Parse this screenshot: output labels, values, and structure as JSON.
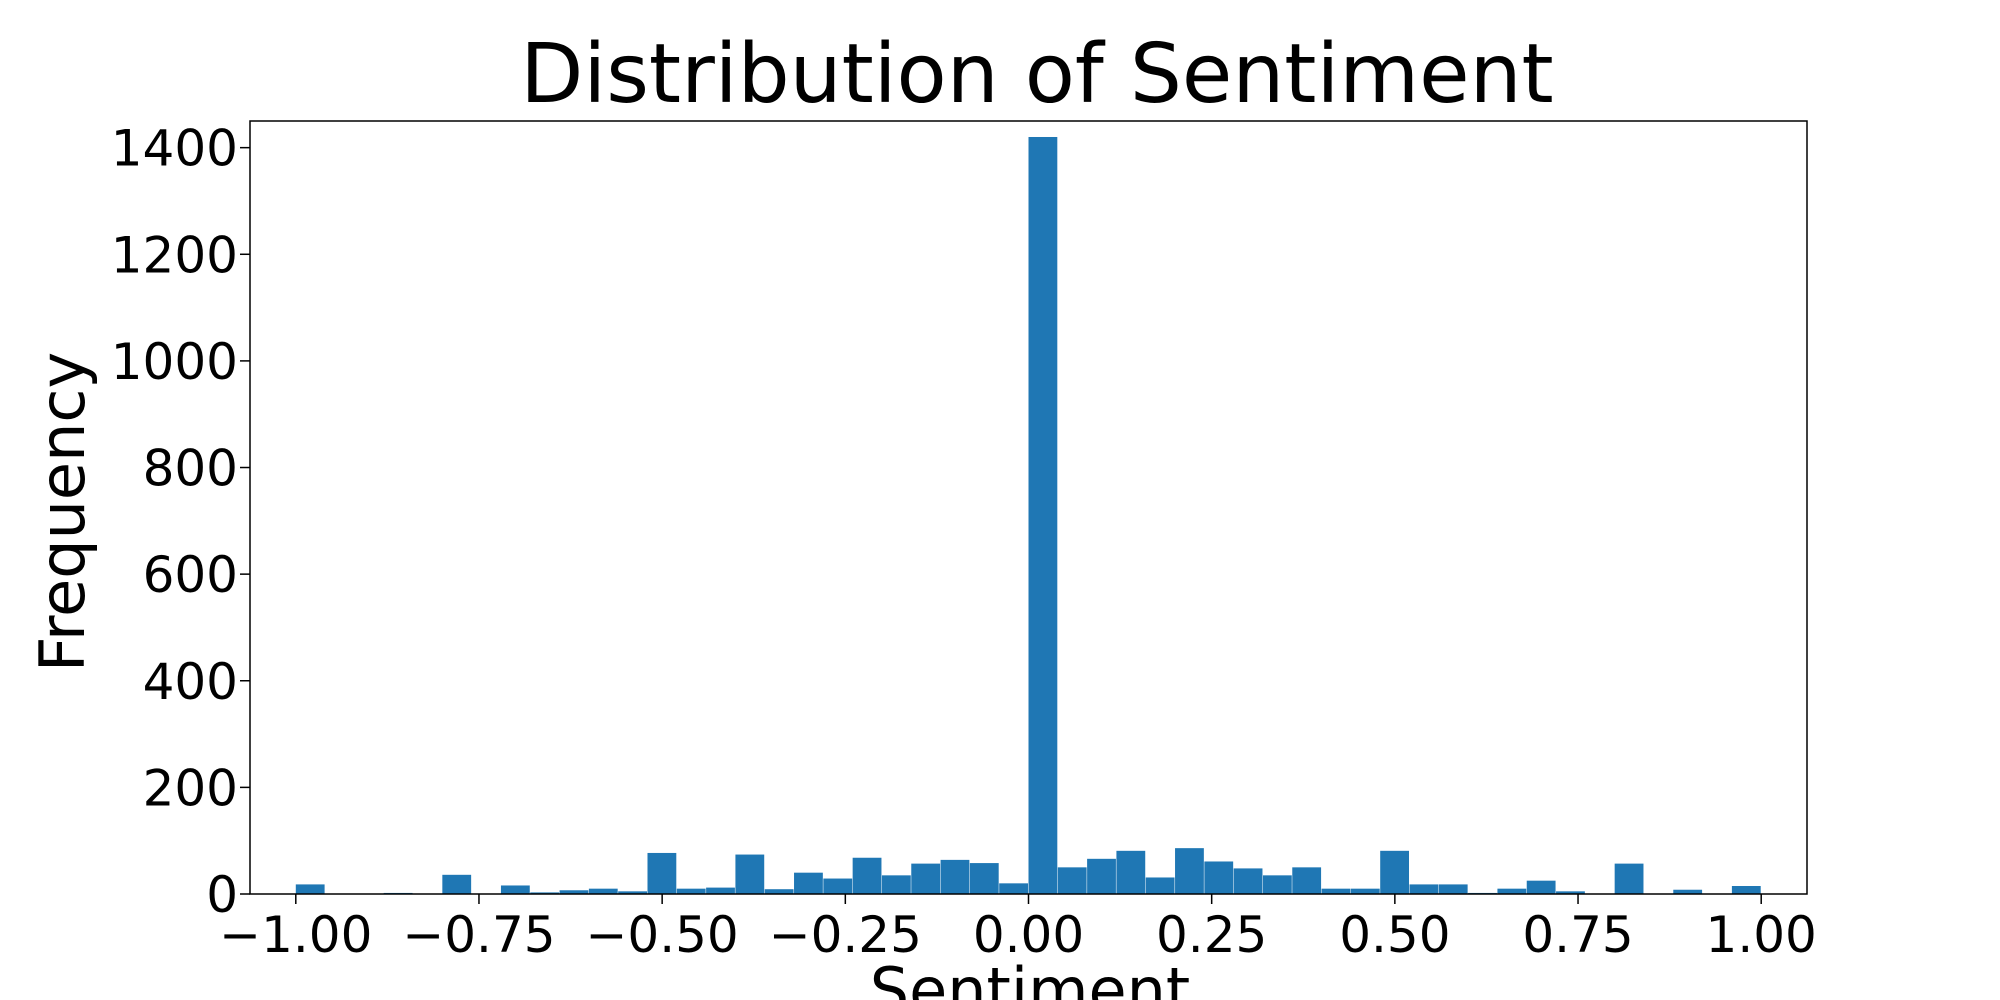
{
  "chart_data": {
    "type": "bar",
    "title": "Distribution of Sentiment",
    "xlabel": "Sentiment",
    "ylabel": "Frequency",
    "xlim": [
      -1.0625,
      1.0625
    ],
    "ylim": [
      0,
      1450
    ],
    "grid": false,
    "bar_color": "#1f77b4",
    "x_ticks": [
      "−1.00",
      "−0.75",
      "−0.50",
      "−0.25",
      "0.00",
      "0.25",
      "0.50",
      "0.75",
      "1.00"
    ],
    "x_tick_values": [
      -1.0,
      -0.75,
      -0.5,
      -0.25,
      0.0,
      0.25,
      0.5,
      0.75,
      1.0
    ],
    "y_ticks": [
      "0",
      "200",
      "400",
      "600",
      "800",
      "1000",
      "1200",
      "1400"
    ],
    "y_tick_values": [
      0,
      200,
      400,
      600,
      800,
      1000,
      1200,
      1400
    ],
    "bin_edges": [
      -1.0,
      -0.96,
      -0.92,
      -0.88,
      -0.84,
      -0.8,
      -0.76,
      -0.72,
      -0.68,
      -0.64,
      -0.6,
      -0.56,
      -0.52,
      -0.48,
      -0.44,
      -0.4,
      -0.36,
      -0.32,
      -0.28,
      -0.24,
      -0.2,
      -0.16,
      -0.12,
      -0.08,
      -0.04,
      0.0,
      0.04,
      0.08,
      0.12,
      0.16,
      0.2,
      0.24,
      0.28,
      0.32,
      0.36,
      0.4,
      0.44,
      0.48,
      0.52,
      0.56,
      0.6,
      0.64,
      0.68,
      0.72,
      0.76,
      0.8,
      0.84,
      0.88,
      0.92,
      0.96,
      1.0
    ],
    "values": [
      18,
      0,
      0,
      2,
      0,
      36,
      0,
      16,
      3,
      7,
      10,
      5,
      77,
      10,
      12,
      74,
      9,
      40,
      29,
      68,
      35,
      57,
      64,
      58,
      20,
      1420,
      50,
      66,
      81,
      31,
      86,
      61,
      48,
      35,
      50,
      10,
      10,
      81,
      18,
      18,
      2,
      10,
      25,
      5,
      0,
      57,
      0,
      8,
      0,
      15
    ]
  }
}
